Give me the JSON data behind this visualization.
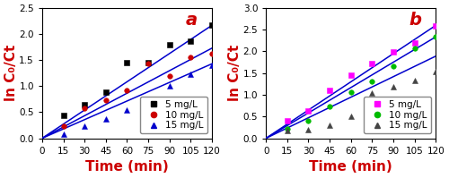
{
  "panel_a": {
    "label": "a",
    "ylabel": "ln C₀/Ct",
    "xlabel": "Time (min)",
    "ylim": [
      0,
      2.5
    ],
    "yticks": [
      0.0,
      0.5,
      1.0,
      1.5,
      2.0,
      2.5
    ],
    "xlim": [
      0,
      120
    ],
    "xticks": [
      0,
      15,
      30,
      45,
      60,
      75,
      90,
      105,
      120
    ],
    "series": [
      {
        "label": "5 mg/L",
        "color": "#000000",
        "marker": "s",
        "x": [
          15,
          30,
          45,
          60,
          75,
          90,
          105,
          120
        ],
        "y": [
          0.44,
          0.64,
          0.88,
          1.45,
          1.45,
          1.8,
          1.87,
          2.17
        ],
        "fit_slope": 0.01805
      },
      {
        "label": "10 mg/L",
        "color": "#cc0000",
        "marker": "o",
        "x": [
          15,
          30,
          45,
          60,
          75,
          90,
          105,
          120
        ],
        "y": [
          0.23,
          0.57,
          0.73,
          0.92,
          1.43,
          1.2,
          1.55,
          1.62
        ],
        "fit_slope": 0.0144
      },
      {
        "label": "15 mg/L",
        "color": "#0000cc",
        "marker": "^",
        "x": [
          15,
          30,
          45,
          60,
          75,
          90,
          105,
          120
        ],
        "y": [
          0.08,
          0.23,
          0.37,
          0.55,
          0.69,
          1.0,
          1.22,
          1.4
        ],
        "fit_slope": 0.0119
      }
    ],
    "line_color": "#0000cc",
    "legend_loc": "lower right"
  },
  "panel_b": {
    "label": "b",
    "ylabel": "ln C₀/Ct",
    "xlabel": "Time (min)",
    "ylim": [
      0,
      3.0
    ],
    "yticks": [
      0.0,
      0.5,
      1.0,
      1.5,
      2.0,
      2.5,
      3.0
    ],
    "xlim": [
      0,
      120
    ],
    "xticks": [
      0,
      15,
      30,
      45,
      60,
      75,
      90,
      105,
      120
    ],
    "series": [
      {
        "label": "5 mg/L",
        "color": "#ff00ff",
        "marker": "s",
        "x": [
          15,
          30,
          45,
          60,
          75,
          90,
          105,
          120
        ],
        "y": [
          0.4,
          0.62,
          1.1,
          1.45,
          1.73,
          1.98,
          2.2,
          2.58
        ],
        "fit_slope": 0.02165
      },
      {
        "label": "10 mg/L",
        "color": "#00bb00",
        "marker": "o",
        "x": [
          15,
          30,
          45,
          60,
          75,
          90,
          105,
          120
        ],
        "y": [
          0.22,
          0.4,
          0.73,
          1.07,
          1.3,
          1.65,
          2.07,
          2.33
        ],
        "fit_slope": 0.01945
      },
      {
        "label": "15 mg/L",
        "color": "#444444",
        "marker": "^",
        "x": [
          15,
          30,
          45,
          60,
          75,
          90,
          105,
          120
        ],
        "y": [
          0.18,
          0.2,
          0.3,
          0.51,
          1.05,
          1.18,
          1.32,
          1.54
        ],
        "fit_slope": 0.01575
      }
    ],
    "line_color": "#0000cc",
    "legend_loc": "lower right"
  },
  "label_color": "#cc0000",
  "axis_label_color": "#cc0000",
  "tick_color": "#000000",
  "spine_color": "#000000",
  "bg_color": "#ffffff",
  "label_fontsize": 11,
  "tick_fontsize": 7.5,
  "legend_fontsize": 7.5
}
